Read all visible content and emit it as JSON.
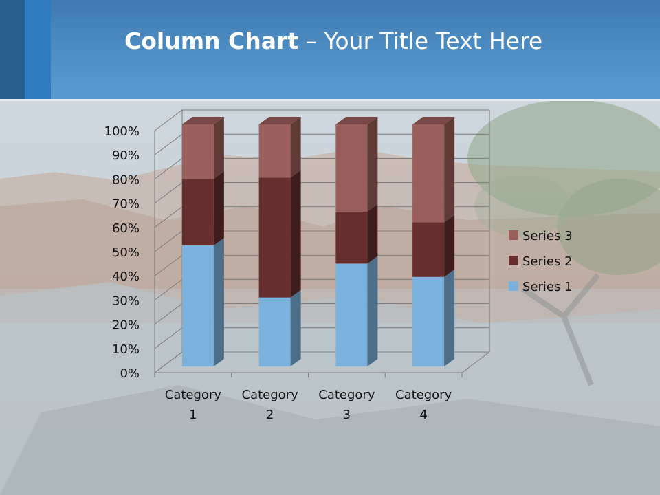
{
  "title": {
    "bold": "Column Chart",
    "rest": " – Your Title Text Here"
  },
  "colors": {
    "header": "#4f8fc5",
    "series1": "#7ab2dd",
    "series2": "#662f2d",
    "series3": "#9a5e5b"
  },
  "chart_data": {
    "type": "bar",
    "stacked": "percent",
    "three_d": true,
    "categories": [
      "Category 1",
      "Category 2",
      "Category 3",
      "Category 4"
    ],
    "series": [
      {
        "name": "Series 1",
        "values": [
          50,
          28.5,
          42.5,
          37
        ]
      },
      {
        "name": "Series 2",
        "values": [
          27.5,
          49.5,
          21.5,
          22.5
        ]
      },
      {
        "name": "Series 3",
        "values": [
          22.5,
          22,
          36,
          40.5
        ]
      }
    ],
    "yticks": [
      "0%",
      "10%",
      "20%",
      "30%",
      "40%",
      "50%",
      "60%",
      "70%",
      "80%",
      "90%",
      "100%"
    ],
    "ylim": [
      0,
      100
    ],
    "grid": true,
    "legend": "right"
  }
}
